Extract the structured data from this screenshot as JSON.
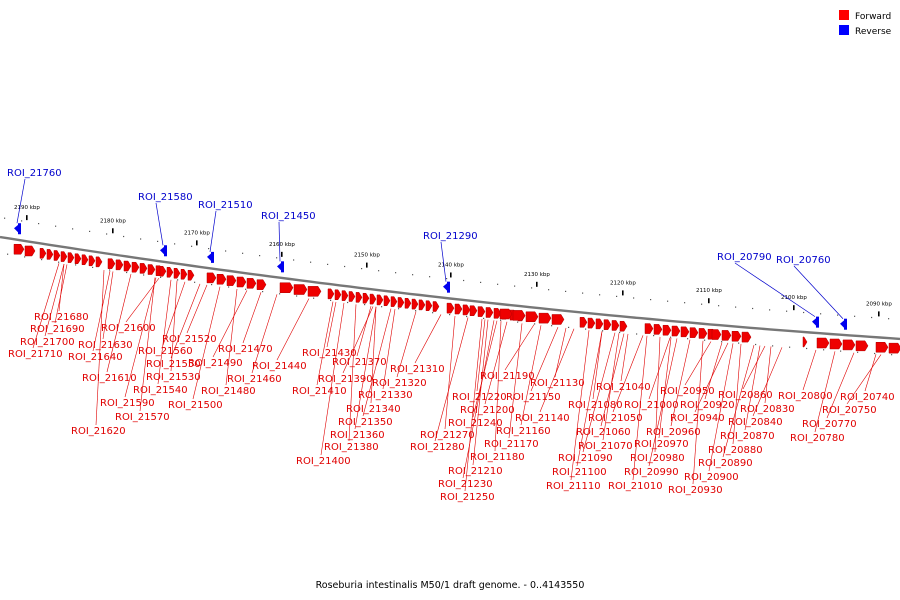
{
  "legend": [
    {
      "label": "Forward",
      "color": "#ff0000"
    },
    {
      "label": "Reverse",
      "color": "#0000ff"
    }
  ],
  "caption": "Roseburia intestinalis M50/1 draft genome. - 0..4143550",
  "scale_ticks": [
    {
      "label": "2190 kbp"
    },
    {
      "label": "2180 kbp"
    },
    {
      "label": "2170 kbp"
    },
    {
      "label": "2160 kbp"
    },
    {
      "label": "2150 kbp"
    },
    {
      "label": "2140 kbp"
    },
    {
      "label": "2130 kbp"
    },
    {
      "label": "2120 kbp"
    },
    {
      "label": "2110 kbp"
    },
    {
      "label": "2100 kbp"
    },
    {
      "label": "2090 kbp"
    }
  ],
  "reverse_features": [
    {
      "label": "ROI_21760"
    },
    {
      "label": "ROI_21580"
    },
    {
      "label": "ROI_21510"
    },
    {
      "label": "ROI_21450"
    },
    {
      "label": "ROI_21290"
    },
    {
      "label": "ROI_20790"
    },
    {
      "label": "ROI_20760"
    }
  ],
  "forward_features": [
    {
      "label": "ROI_21680"
    },
    {
      "label": "ROI_21690"
    },
    {
      "label": "ROI_21700"
    },
    {
      "label": "ROI_21710"
    },
    {
      "label": "ROI_21600"
    },
    {
      "label": "ROI_21630"
    },
    {
      "label": "ROI_21640"
    },
    {
      "label": "ROI_21610"
    },
    {
      "label": "ROI_21590"
    },
    {
      "label": "ROI_21620"
    },
    {
      "label": "ROI_21570"
    },
    {
      "label": "ROI_21560"
    },
    {
      "label": "ROI_21550"
    },
    {
      "label": "ROI_21530"
    },
    {
      "label": "ROI_21540"
    },
    {
      "label": "ROI_21520"
    },
    {
      "label": "ROI_21500"
    },
    {
      "label": "ROI_21490"
    },
    {
      "label": "ROI_21480"
    },
    {
      "label": "ROI_21470"
    },
    {
      "label": "ROI_21460"
    },
    {
      "label": "ROI_21440"
    },
    {
      "label": "ROI_21430"
    },
    {
      "label": "ROI_21410"
    },
    {
      "label": "ROI_21400"
    },
    {
      "label": "ROI_21390"
    },
    {
      "label": "ROI_21380"
    },
    {
      "label": "ROI_21370"
    },
    {
      "label": "ROI_21360"
    },
    {
      "label": "ROI_21350"
    },
    {
      "label": "ROI_21340"
    },
    {
      "label": "ROI_21330"
    },
    {
      "label": "ROI_21320"
    },
    {
      "label": "ROI_21310"
    },
    {
      "label": "ROI_21280"
    },
    {
      "label": "ROI_21270"
    },
    {
      "label": "ROI_21250"
    },
    {
      "label": "ROI_21240"
    },
    {
      "label": "ROI_21230"
    },
    {
      "label": "ROI_21220"
    },
    {
      "label": "ROI_21210"
    },
    {
      "label": "ROI_21200"
    },
    {
      "label": "ROI_21190"
    },
    {
      "label": "ROI_21180"
    },
    {
      "label": "ROI_21170"
    },
    {
      "label": "ROI_21160"
    },
    {
      "label": "ROI_21150"
    },
    {
      "label": "ROI_21140"
    },
    {
      "label": "ROI_21130"
    },
    {
      "label": "ROI_21110"
    },
    {
      "label": "ROI_21100"
    },
    {
      "label": "ROI_21090"
    },
    {
      "label": "ROI_21080"
    },
    {
      "label": "ROI_21070"
    },
    {
      "label": "ROI_21060"
    },
    {
      "label": "ROI_21050"
    },
    {
      "label": "ROI_21040"
    },
    {
      "label": "ROI_21010"
    },
    {
      "label": "ROI_21000"
    },
    {
      "label": "ROI_20990"
    },
    {
      "label": "ROI_20980"
    },
    {
      "label": "ROI_20970"
    },
    {
      "label": "ROI_20960"
    },
    {
      "label": "ROI_20950"
    },
    {
      "label": "ROI_20940"
    },
    {
      "label": "ROI_20930"
    },
    {
      "label": "ROI_20920"
    },
    {
      "label": "ROI_20900"
    },
    {
      "label": "ROI_20890"
    },
    {
      "label": "ROI_20880"
    },
    {
      "label": "ROI_20870"
    },
    {
      "label": "ROI_20860"
    },
    {
      "label": "ROI_20840"
    },
    {
      "label": "ROI_20830"
    },
    {
      "label": "ROI_20800"
    },
    {
      "label": "ROI_20780"
    },
    {
      "label": "ROI_20770"
    },
    {
      "label": "ROI_20750"
    },
    {
      "label": "ROI_20740"
    }
  ]
}
